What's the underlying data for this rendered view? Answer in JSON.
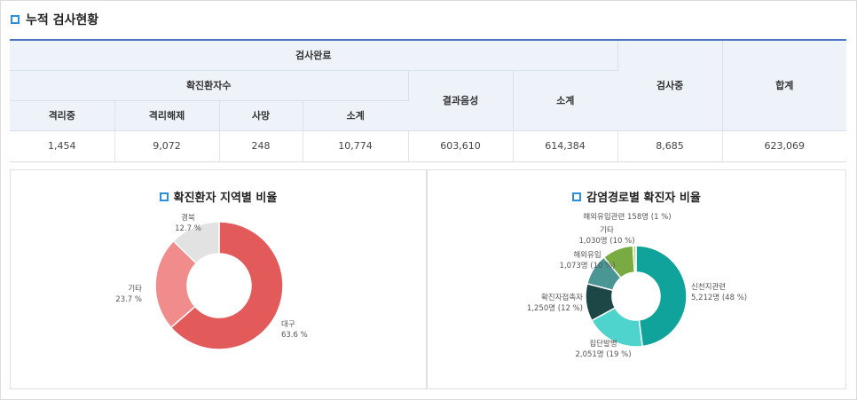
{
  "summary": {
    "title": "누적 검사현황",
    "headers": {
      "completed": "검사완료",
      "confirmed": "확진환자수",
      "negative": "결과음성",
      "subtotal": "소계",
      "testing": "검사중",
      "total": "합계",
      "isolated": "격리중",
      "released": "격리해제",
      "deaths": "사망",
      "confirmed_subtotal": "소계"
    },
    "values": {
      "isolated": "1,454",
      "released": "9,072",
      "deaths": "248",
      "confirmed_subtotal": "10,774",
      "negative": "603,610",
      "subtotal": "614,384",
      "testing": "8,685",
      "total": "623,069"
    }
  },
  "colors": {
    "accent": "#2f8fd6",
    "header_border": "#4a78c2"
  },
  "chart_data": [
    {
      "type": "pie",
      "title": "확진환자 지역별 비율",
      "slices": [
        {
          "name": "대구",
          "value": 63.6,
          "label": "63.6 %",
          "color": "#e25a5a"
        },
        {
          "name": "기타",
          "value": 23.7,
          "label": "23.7 %",
          "color": "#f08c8c"
        },
        {
          "name": "경북",
          "value": 12.7,
          "label": "12.7 %",
          "color": "#e2e2e2"
        }
      ]
    },
    {
      "type": "pie",
      "title": "감염경로별 확진자 비율",
      "slices": [
        {
          "name": "신천지관련",
          "value": 48,
          "label": "5,212명 (48 %)",
          "color": "#0fa39b"
        },
        {
          "name": "집단발병",
          "value": 19,
          "label": "2,051명 (19 %)",
          "color": "#4fd3cd"
        },
        {
          "name": "확진자접촉자",
          "value": 12,
          "label": "1,250명 (12 %)",
          "color": "#1d4747"
        },
        {
          "name": "해외유입",
          "value": 10,
          "label": "1,073명 (10 %)",
          "color": "#4a9694"
        },
        {
          "name": "기타",
          "value": 10,
          "label": "1,030명 (10 %)",
          "color": "#7aab42"
        },
        {
          "name": "해외유입관련",
          "value": 1,
          "label": "158명 (1 %)",
          "color": "#bcd98a"
        }
      ]
    }
  ]
}
